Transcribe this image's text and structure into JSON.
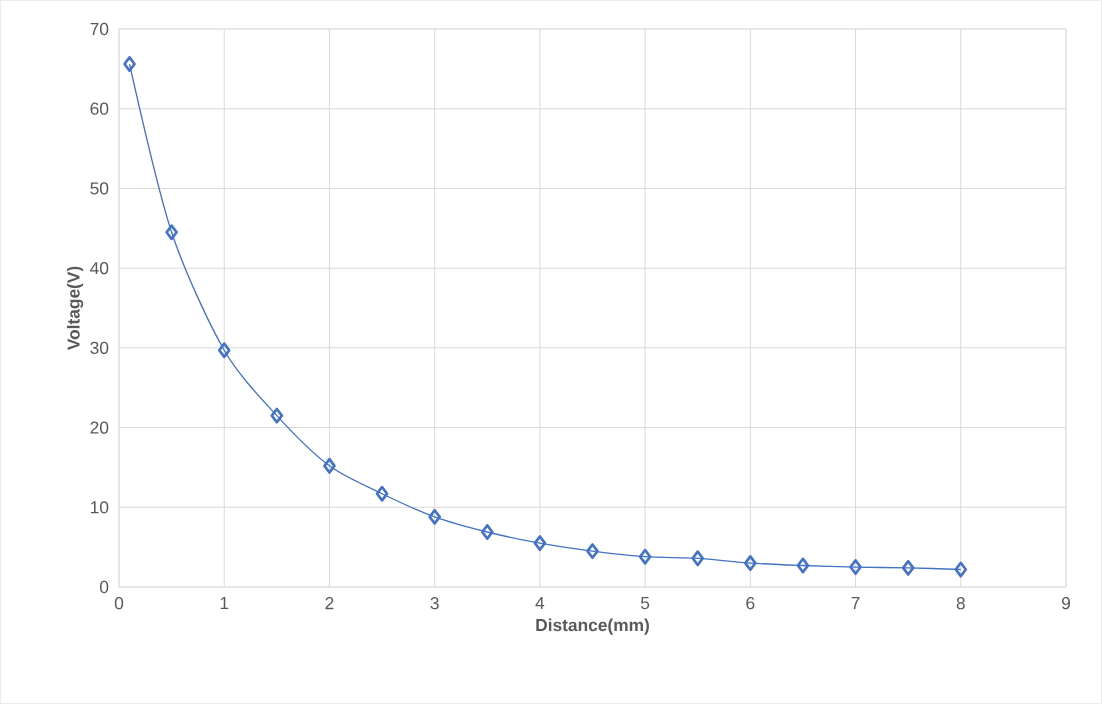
{
  "chart_data": {
    "type": "line",
    "xlabel": "Distance(mm)",
    "ylabel": "Voltage(V)",
    "x": [
      0.1,
      0.5,
      1,
      1.5,
      2,
      2.5,
      3,
      3.5,
      4,
      4.5,
      5,
      5.5,
      6,
      6.5,
      7,
      7.5,
      8
    ],
    "series": [
      {
        "color": "#4472c4",
        "values": [
          65.6,
          44.5,
          29.7,
          21.5,
          15.2,
          11.7,
          8.8,
          6.9,
          5.5,
          4.5,
          3.8,
          3.6,
          3.0,
          2.7,
          2.5,
          2.4,
          2.2
        ]
      }
    ],
    "xlim": [
      0,
      9
    ],
    "xticks": [
      0,
      1,
      2,
      3,
      4,
      5,
      6,
      7,
      8,
      9
    ],
    "ylim": [
      0,
      70
    ],
    "yticks": [
      0,
      10,
      20,
      30,
      40,
      50,
      60,
      70
    ],
    "grid": true,
    "marker": "diamond",
    "line_style": "solid"
  }
}
